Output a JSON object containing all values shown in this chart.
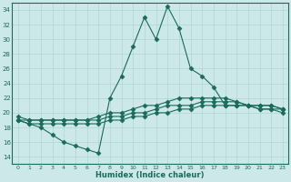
{
  "xlabel": "Humidex (Indice chaleur)",
  "background_color": "#cce8e8",
  "line_color": "#1a6b5a",
  "grid_color": "#aed4d4",
  "xlim": [
    -0.5,
    23.5
  ],
  "ylim": [
    13,
    35
  ],
  "yticks": [
    14,
    16,
    18,
    20,
    22,
    24,
    26,
    28,
    30,
    32,
    34
  ],
  "xticks": [
    0,
    1,
    2,
    3,
    4,
    5,
    6,
    7,
    8,
    9,
    10,
    11,
    12,
    13,
    14,
    15,
    16,
    17,
    18,
    19,
    20,
    21,
    22,
    23
  ],
  "series": [
    {
      "x": [
        0,
        1,
        2,
        3,
        4,
        5,
        6,
        7,
        8,
        9,
        10,
        11,
        12,
        13,
        14,
        15,
        16,
        17,
        18,
        19,
        20,
        21,
        22,
        23
      ],
      "y": [
        19,
        18.5,
        18,
        17,
        16,
        15.5,
        15,
        14.5,
        22,
        25,
        29,
        33,
        30,
        34.5,
        31.5,
        26,
        25,
        23.5,
        21,
        21,
        21,
        20.5,
        20.5,
        20.5
      ],
      "marker": "D",
      "markersize": 2.5
    },
    {
      "x": [
        0,
        1,
        2,
        3,
        4,
        5,
        6,
        7,
        8,
        9,
        10,
        11,
        12,
        13,
        14,
        15,
        16,
        17,
        18,
        19,
        20,
        21,
        22,
        23
      ],
      "y": [
        19.5,
        19,
        19,
        19,
        19,
        19,
        19,
        19.5,
        20,
        20,
        20.5,
        21,
        21,
        21.5,
        22,
        22,
        22,
        22,
        22,
        21.5,
        21,
        21,
        21,
        20.5
      ],
      "marker": "D",
      "markersize": 2.5
    },
    {
      "x": [
        0,
        1,
        2,
        3,
        4,
        5,
        6,
        7,
        8,
        9,
        10,
        11,
        12,
        13,
        14,
        15,
        16,
        17,
        18,
        19,
        20,
        21,
        22,
        23
      ],
      "y": [
        19,
        19,
        19,
        19,
        19,
        19,
        19,
        19,
        19.5,
        19.5,
        20,
        20,
        20.5,
        21,
        21,
        21,
        21.5,
        21.5,
        21.5,
        21.5,
        21,
        21,
        21,
        20.5
      ],
      "marker": "D",
      "markersize": 2.5
    },
    {
      "x": [
        0,
        1,
        2,
        3,
        4,
        5,
        6,
        7,
        8,
        9,
        10,
        11,
        12,
        13,
        14,
        15,
        16,
        17,
        18,
        19,
        20,
        21,
        22,
        23
      ],
      "y": [
        19,
        18.5,
        18.5,
        18.5,
        18.5,
        18.5,
        18.5,
        18.5,
        19,
        19,
        19.5,
        19.5,
        20,
        20,
        20.5,
        20.5,
        21,
        21,
        21,
        21,
        21,
        20.5,
        20.5,
        20
      ],
      "marker": "D",
      "markersize": 2.5
    }
  ]
}
